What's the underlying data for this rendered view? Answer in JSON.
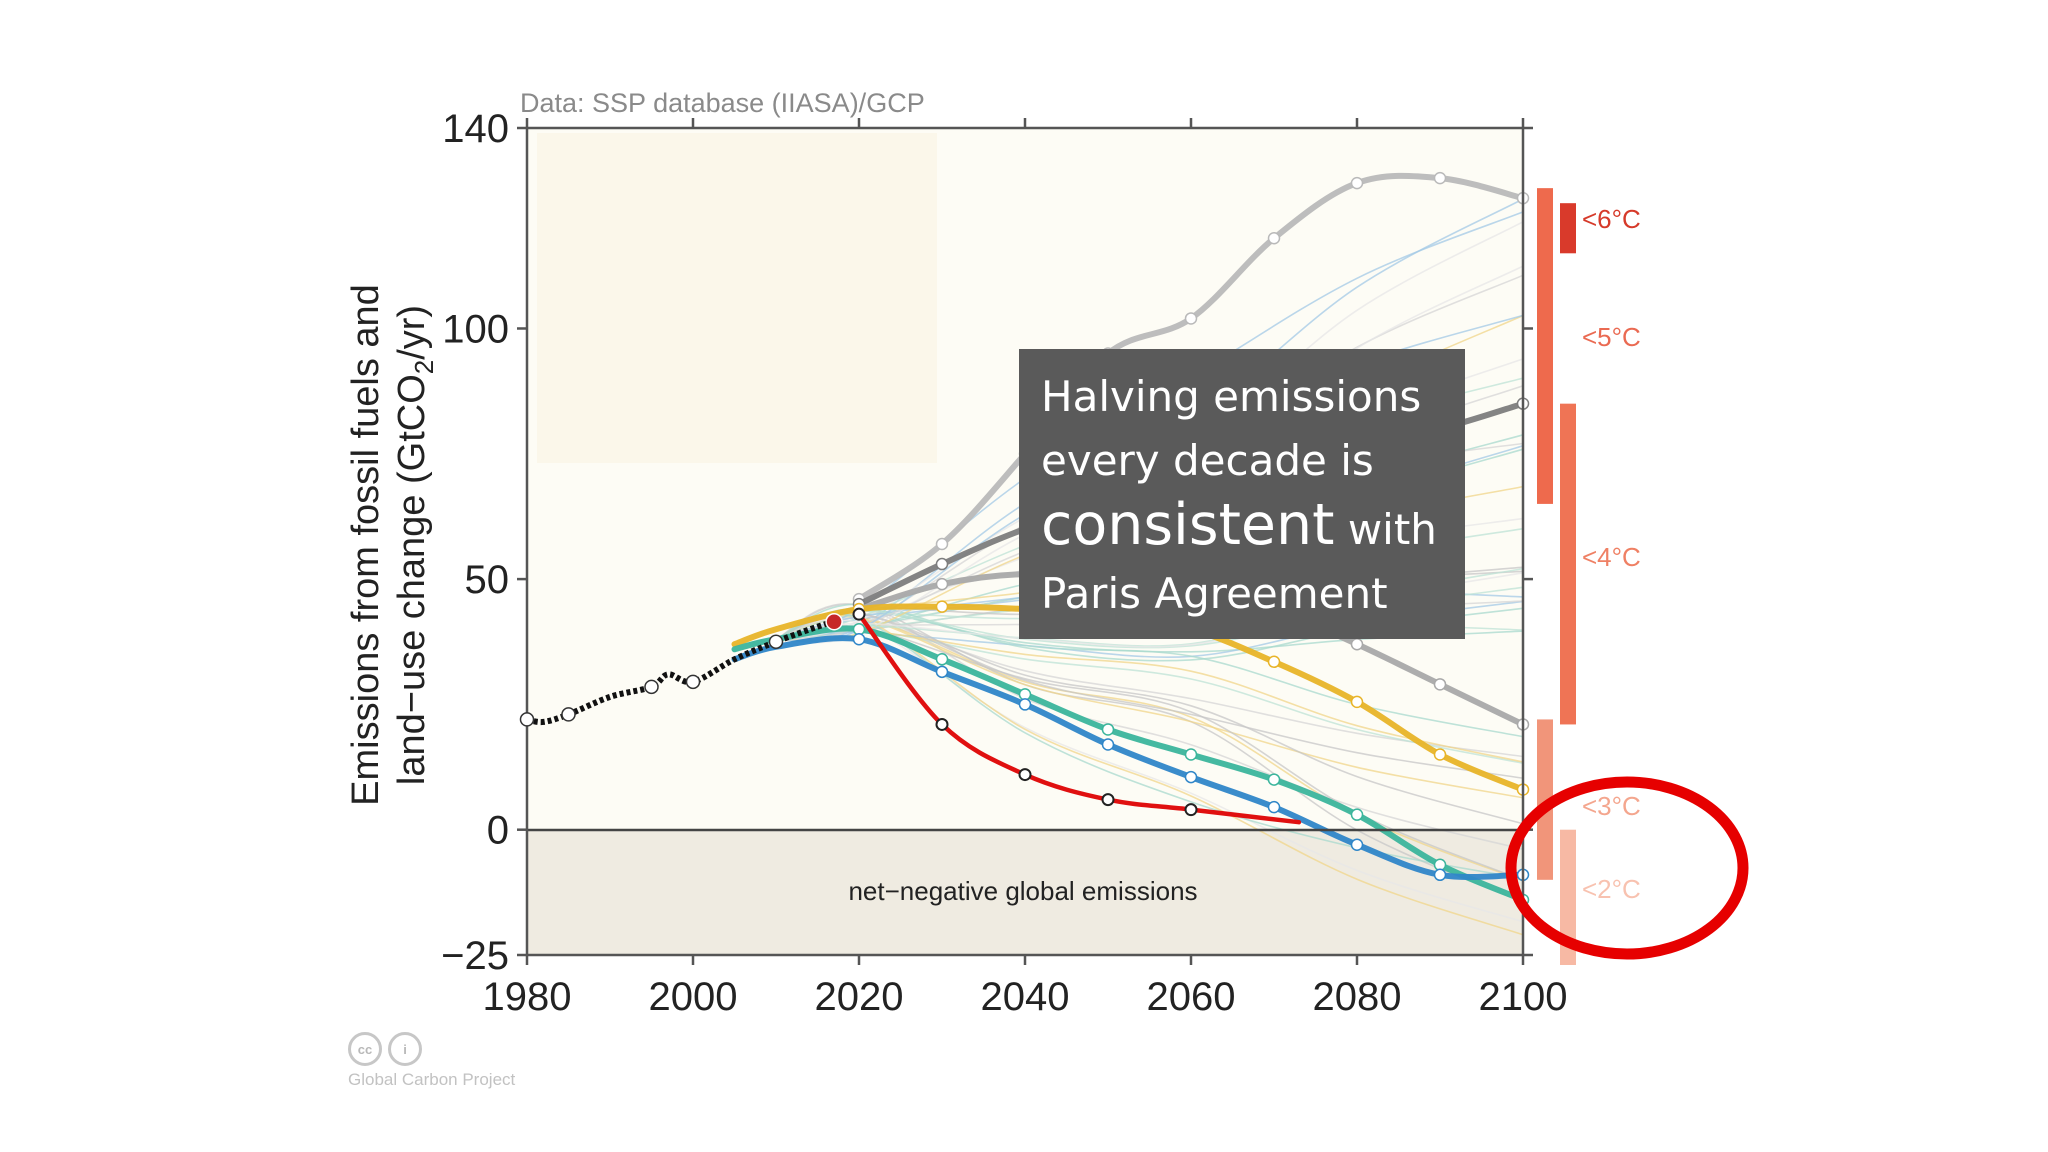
{
  "chart_data": {
    "type": "line",
    "source": "Data: SSP database (IIASA)/GCP",
    "ylabel_line1": "Emissions from fossil fuels and",
    "ylabel_line2_prefix": "land−use change (GtCO",
    "ylabel_line2_sub": "2",
    "ylabel_line2_suffix": "/yr)",
    "xlim": [
      1980,
      2100
    ],
    "ylim": [
      -25,
      140
    ],
    "x_ticks": [
      "1980",
      "2000",
      "2020",
      "2040",
      "2060",
      "2080",
      "2100"
    ],
    "y_ticks": [
      "140",
      "100",
      "50",
      "0",
      "−25"
    ],
    "negative_region_label": "net−negative global emissions",
    "historical": {
      "x": [
        1980,
        1982,
        1985,
        1990,
        1995,
        1997,
        2000,
        2005,
        2010,
        2015,
        2017
      ],
      "y": [
        22,
        21.5,
        23,
        26.5,
        28.5,
        31,
        29.5,
        34,
        37.5,
        40.5,
        41.5
      ],
      "color": "#111111"
    },
    "current_point": {
      "x": 2017,
      "y": 41.5,
      "color": "#c62828"
    },
    "series": [
      {
        "x": [
          2020,
          2030,
          2040,
          2050,
          2060,
          2070,
          2080,
          2090,
          2100
        ],
        "y": [
          46,
          57,
          75,
          95,
          102,
          118,
          129,
          130,
          126
        ],
        "color": "#b9b9b9",
        "width": 6
      },
      {
        "x": [
          2020,
          2030,
          2040,
          2050,
          2060,
          2070,
          2080,
          2090,
          2100
        ],
        "y": [
          45,
          53,
          60,
          65,
          70,
          74,
          77,
          80,
          85
        ],
        "color": "#7d7d7d",
        "width": 6
      },
      {
        "x": [
          2020,
          2030,
          2040,
          2050,
          2060,
          2070,
          2080,
          2090,
          2100
        ],
        "y": [
          44,
          49,
          51,
          50,
          48,
          44,
          37,
          29,
          21
        ],
        "color": "#a9a9a9",
        "width": 6
      },
      {
        "x": [
          2005,
          2010,
          2020,
          2030,
          2040,
          2050,
          2060,
          2070,
          2080,
          2090,
          2100
        ],
        "y": [
          37,
          40,
          44,
          44.5,
          44,
          42.5,
          40,
          33.5,
          25.5,
          15,
          8
        ],
        "color": "#e8b428",
        "width": 6
      },
      {
        "x": [
          2005,
          2010,
          2020,
          2030,
          2040,
          2050,
          2060,
          2070,
          2080,
          2090,
          2100
        ],
        "y": [
          36,
          38,
          40,
          34,
          27,
          20,
          15,
          10,
          3,
          -7,
          -14
        ],
        "color": "#3bb59c",
        "width": 6
      },
      {
        "x": [
          2005,
          2010,
          2020,
          2030,
          2040,
          2050,
          2060,
          2070,
          2080,
          2090,
          2100
        ],
        "y": [
          34,
          36.5,
          38,
          31.5,
          25,
          17,
          10.5,
          4.5,
          -3,
          -9,
          -9
        ],
        "color": "#2f86c8",
        "width": 6
      }
    ],
    "halving_path": {
      "x": [
        2020,
        2030,
        2040,
        2050,
        2060,
        2073
      ],
      "y": [
        43,
        21,
        11,
        6,
        4,
        1.5
      ],
      "color": "#e01010"
    },
    "temperature_labels": [
      "<6°C",
      "<5°C",
      "<4°C",
      "<3°C",
      "<2°C"
    ],
    "temperature_bars": [
      {
        "label": "<6°C",
        "y_from": 115,
        "y_to": 125,
        "color": "#d93a2b"
      },
      {
        "label": "<5°C",
        "y_from": 65,
        "y_to": 128,
        "color": "#ee6a4d"
      },
      {
        "label": "<4°C",
        "y_from": 21,
        "y_to": 85,
        "color": "#ef7455"
      },
      {
        "label": "<3°C",
        "y_from": -10,
        "y_to": 22,
        "color": "#f1957a"
      },
      {
        "label": "<2°C",
        "y_from": -27,
        "y_to": 0,
        "color": "#f7b9a4"
      }
    ]
  },
  "callout": {
    "line1": "Halving emissions",
    "line2": "every decade is",
    "line3_big": "consistent",
    "line3_small": " with",
    "line4": "Paris Agreement"
  },
  "license": {
    "cc_icon": "cc",
    "by_icon": "i",
    "label": "Global Carbon Project"
  },
  "highlight_color": "#e60000"
}
